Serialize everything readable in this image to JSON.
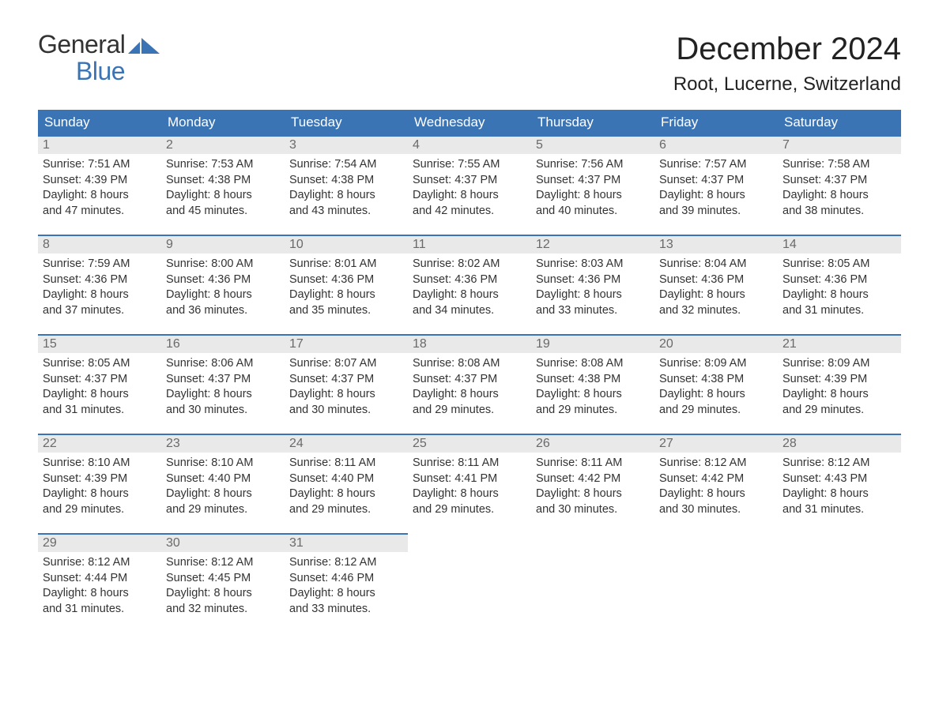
{
  "logo": {
    "text_general": "General",
    "text_blue": "Blue"
  },
  "title": "December 2024",
  "location": "Root, Lucerne, Switzerland",
  "colors": {
    "header_bg": "#3b74b5",
    "header_text": "#ffffff",
    "daynum_bg": "#e9e9e9",
    "daynum_text": "#6a6a6a",
    "body_text": "#333333",
    "border": "#3b74b5",
    "page_bg": "#ffffff",
    "logo_blue": "#3b74b5"
  },
  "layout": {
    "columns": 7,
    "rows": 5,
    "first_day_column": 0
  },
  "weekdays": [
    "Sunday",
    "Monday",
    "Tuesday",
    "Wednesday",
    "Thursday",
    "Friday",
    "Saturday"
  ],
  "days": [
    {
      "n": "1",
      "sunrise": "Sunrise: 7:51 AM",
      "sunset": "Sunset: 4:39 PM",
      "dl1": "Daylight: 8 hours",
      "dl2": "and 47 minutes."
    },
    {
      "n": "2",
      "sunrise": "Sunrise: 7:53 AM",
      "sunset": "Sunset: 4:38 PM",
      "dl1": "Daylight: 8 hours",
      "dl2": "and 45 minutes."
    },
    {
      "n": "3",
      "sunrise": "Sunrise: 7:54 AM",
      "sunset": "Sunset: 4:38 PM",
      "dl1": "Daylight: 8 hours",
      "dl2": "and 43 minutes."
    },
    {
      "n": "4",
      "sunrise": "Sunrise: 7:55 AM",
      "sunset": "Sunset: 4:37 PM",
      "dl1": "Daylight: 8 hours",
      "dl2": "and 42 minutes."
    },
    {
      "n": "5",
      "sunrise": "Sunrise: 7:56 AM",
      "sunset": "Sunset: 4:37 PM",
      "dl1": "Daylight: 8 hours",
      "dl2": "and 40 minutes."
    },
    {
      "n": "6",
      "sunrise": "Sunrise: 7:57 AM",
      "sunset": "Sunset: 4:37 PM",
      "dl1": "Daylight: 8 hours",
      "dl2": "and 39 minutes."
    },
    {
      "n": "7",
      "sunrise": "Sunrise: 7:58 AM",
      "sunset": "Sunset: 4:37 PM",
      "dl1": "Daylight: 8 hours",
      "dl2": "and 38 minutes."
    },
    {
      "n": "8",
      "sunrise": "Sunrise: 7:59 AM",
      "sunset": "Sunset: 4:36 PM",
      "dl1": "Daylight: 8 hours",
      "dl2": "and 37 minutes."
    },
    {
      "n": "9",
      "sunrise": "Sunrise: 8:00 AM",
      "sunset": "Sunset: 4:36 PM",
      "dl1": "Daylight: 8 hours",
      "dl2": "and 36 minutes."
    },
    {
      "n": "10",
      "sunrise": "Sunrise: 8:01 AM",
      "sunset": "Sunset: 4:36 PM",
      "dl1": "Daylight: 8 hours",
      "dl2": "and 35 minutes."
    },
    {
      "n": "11",
      "sunrise": "Sunrise: 8:02 AM",
      "sunset": "Sunset: 4:36 PM",
      "dl1": "Daylight: 8 hours",
      "dl2": "and 34 minutes."
    },
    {
      "n": "12",
      "sunrise": "Sunrise: 8:03 AM",
      "sunset": "Sunset: 4:36 PM",
      "dl1": "Daylight: 8 hours",
      "dl2": "and 33 minutes."
    },
    {
      "n": "13",
      "sunrise": "Sunrise: 8:04 AM",
      "sunset": "Sunset: 4:36 PM",
      "dl1": "Daylight: 8 hours",
      "dl2": "and 32 minutes."
    },
    {
      "n": "14",
      "sunrise": "Sunrise: 8:05 AM",
      "sunset": "Sunset: 4:36 PM",
      "dl1": "Daylight: 8 hours",
      "dl2": "and 31 minutes."
    },
    {
      "n": "15",
      "sunrise": "Sunrise: 8:05 AM",
      "sunset": "Sunset: 4:37 PM",
      "dl1": "Daylight: 8 hours",
      "dl2": "and 31 minutes."
    },
    {
      "n": "16",
      "sunrise": "Sunrise: 8:06 AM",
      "sunset": "Sunset: 4:37 PM",
      "dl1": "Daylight: 8 hours",
      "dl2": "and 30 minutes."
    },
    {
      "n": "17",
      "sunrise": "Sunrise: 8:07 AM",
      "sunset": "Sunset: 4:37 PM",
      "dl1": "Daylight: 8 hours",
      "dl2": "and 30 minutes."
    },
    {
      "n": "18",
      "sunrise": "Sunrise: 8:08 AM",
      "sunset": "Sunset: 4:37 PM",
      "dl1": "Daylight: 8 hours",
      "dl2": "and 29 minutes."
    },
    {
      "n": "19",
      "sunrise": "Sunrise: 8:08 AM",
      "sunset": "Sunset: 4:38 PM",
      "dl1": "Daylight: 8 hours",
      "dl2": "and 29 minutes."
    },
    {
      "n": "20",
      "sunrise": "Sunrise: 8:09 AM",
      "sunset": "Sunset: 4:38 PM",
      "dl1": "Daylight: 8 hours",
      "dl2": "and 29 minutes."
    },
    {
      "n": "21",
      "sunrise": "Sunrise: 8:09 AM",
      "sunset": "Sunset: 4:39 PM",
      "dl1": "Daylight: 8 hours",
      "dl2": "and 29 minutes."
    },
    {
      "n": "22",
      "sunrise": "Sunrise: 8:10 AM",
      "sunset": "Sunset: 4:39 PM",
      "dl1": "Daylight: 8 hours",
      "dl2": "and 29 minutes."
    },
    {
      "n": "23",
      "sunrise": "Sunrise: 8:10 AM",
      "sunset": "Sunset: 4:40 PM",
      "dl1": "Daylight: 8 hours",
      "dl2": "and 29 minutes."
    },
    {
      "n": "24",
      "sunrise": "Sunrise: 8:11 AM",
      "sunset": "Sunset: 4:40 PM",
      "dl1": "Daylight: 8 hours",
      "dl2": "and 29 minutes."
    },
    {
      "n": "25",
      "sunrise": "Sunrise: 8:11 AM",
      "sunset": "Sunset: 4:41 PM",
      "dl1": "Daylight: 8 hours",
      "dl2": "and 29 minutes."
    },
    {
      "n": "26",
      "sunrise": "Sunrise: 8:11 AM",
      "sunset": "Sunset: 4:42 PM",
      "dl1": "Daylight: 8 hours",
      "dl2": "and 30 minutes."
    },
    {
      "n": "27",
      "sunrise": "Sunrise: 8:12 AM",
      "sunset": "Sunset: 4:42 PM",
      "dl1": "Daylight: 8 hours",
      "dl2": "and 30 minutes."
    },
    {
      "n": "28",
      "sunrise": "Sunrise: 8:12 AM",
      "sunset": "Sunset: 4:43 PM",
      "dl1": "Daylight: 8 hours",
      "dl2": "and 31 minutes."
    },
    {
      "n": "29",
      "sunrise": "Sunrise: 8:12 AM",
      "sunset": "Sunset: 4:44 PM",
      "dl1": "Daylight: 8 hours",
      "dl2": "and 31 minutes."
    },
    {
      "n": "30",
      "sunrise": "Sunrise: 8:12 AM",
      "sunset": "Sunset: 4:45 PM",
      "dl1": "Daylight: 8 hours",
      "dl2": "and 32 minutes."
    },
    {
      "n": "31",
      "sunrise": "Sunrise: 8:12 AM",
      "sunset": "Sunset: 4:46 PM",
      "dl1": "Daylight: 8 hours",
      "dl2": "and 33 minutes."
    }
  ]
}
